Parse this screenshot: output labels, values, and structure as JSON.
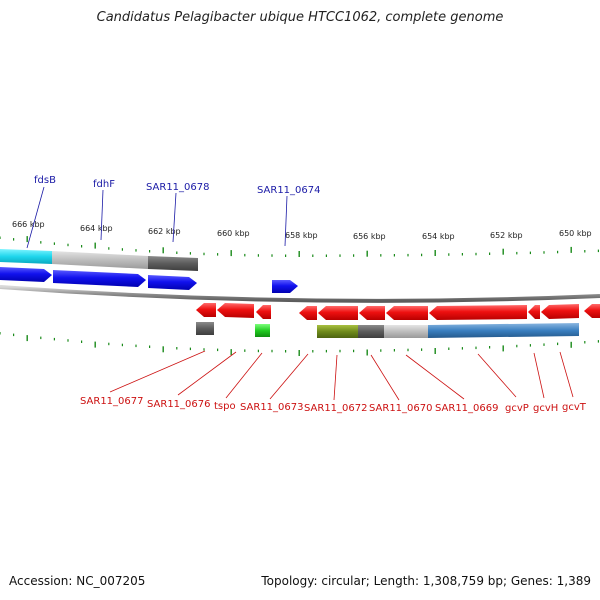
{
  "title": "Candidatus Pelagibacter ubique HTCC1062, complete genome",
  "footer": {
    "accession": "Accession: NC_007205",
    "summary": "Topology: circular; Length: 1,308,759 bp; Genes: 1,389"
  },
  "scale": {
    "unit": "kbp",
    "ticks": [
      "666 kbp",
      "664 kbp",
      "662 kbp",
      "660 kbp",
      "658 kbp",
      "656 kbp",
      "654 kbp",
      "652 kbp",
      "650 kbp"
    ]
  },
  "colors": {
    "forward_gene": "#1010ee",
    "reverse_gene": "#ee1111",
    "backbone": "#888888",
    "tick": "#1a8a1a",
    "label_top": "#1a1aa6",
    "label_bottom": "#cc1111"
  },
  "labels_top": [
    "fdsB",
    "fdhF",
    "SAR11_0678",
    "SAR11_0674"
  ],
  "labels_bottom": [
    "SAR11_0677",
    "SAR11_0676",
    "tspo",
    "SAR11_0673",
    "SAR11_0672",
    "SAR11_0670",
    "SAR11_0669",
    "gcvP",
    "gcvH",
    "gcvT"
  ]
}
